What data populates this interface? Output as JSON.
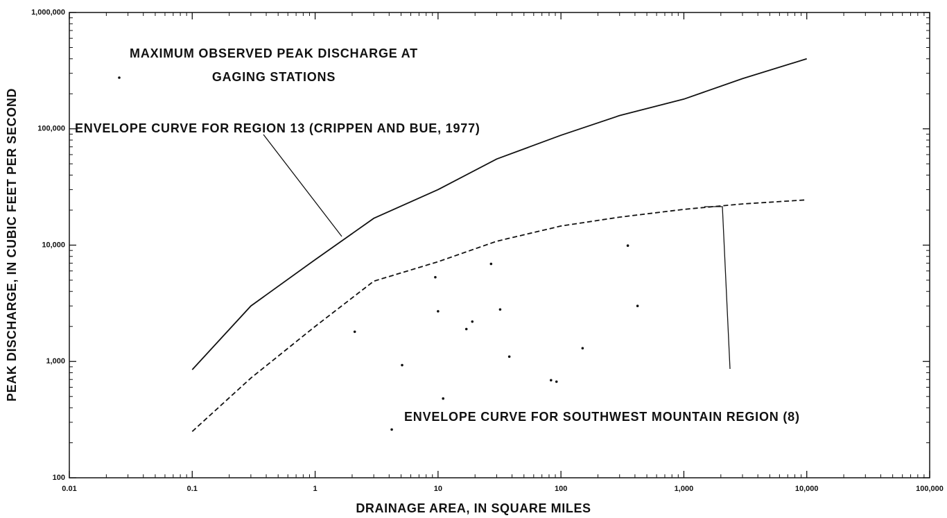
{
  "chart_data": {
    "type": "scatter",
    "xlabel": "DRAINAGE AREA, IN SQUARE MILES",
    "ylabel": "PEAK DISCHARGE, IN CUBIC FEET PER SECOND",
    "xscale": "log",
    "yscale": "log",
    "xlim": [
      0.01,
      100000
    ],
    "ylim": [
      100,
      1000000
    ],
    "xticks": [
      {
        "value": 0.01,
        "label": "0.01"
      },
      {
        "value": 0.1,
        "label": "0.1"
      },
      1,
      10,
      100,
      {
        "value": 1000,
        "label": "1,000"
      },
      {
        "value": 10000,
        "label": "10,000"
      },
      {
        "value": 100000,
        "label": "100,000"
      }
    ],
    "yticks": [
      100,
      {
        "value": 1000,
        "label": "1,000"
      },
      {
        "value": 10000,
        "label": "10,000"
      },
      {
        "value": 100000,
        "label": "100,000"
      },
      {
        "value": 1000000,
        "label": "1,000,000"
      }
    ],
    "grid": false,
    "series": [
      {
        "name": "MAXIMUM OBSERVED PEAK DISCHARGE AT GAGING STATIONS",
        "color": "#111111",
        "mode": "markers",
        "x": [
          2.1,
          5.1,
          4.2,
          9.5,
          10,
          11,
          19,
          17,
          27,
          32,
          38,
          83,
          92,
          150,
          350,
          420
        ],
        "values": [
          1800,
          930,
          260,
          5300,
          2700,
          480,
          2200,
          1900,
          6900,
          2800,
          1100,
          690,
          670,
          1300,
          9900,
          3000
        ]
      },
      {
        "name": "ENVELOPE CURVE FOR REGION 13 (CRIPPEN AND BUE, 1977)",
        "color": "#111111",
        "mode": "lines",
        "linestyle": "solid",
        "x": [
          0.1,
          0.3,
          1,
          3,
          10,
          30,
          100,
          300,
          1000,
          3000,
          10000
        ],
        "values": [
          850,
          3000,
          7500,
          17000,
          30000,
          55000,
          88000,
          130000,
          180000,
          270000,
          400000
        ]
      },
      {
        "name": "ENVELOPE CURVE FOR SOUTHWEST MOUNTAIN REGION (8)",
        "color": "#111111",
        "mode": "lines",
        "linestyle": "dashed",
        "x": [
          0.1,
          0.3,
          1,
          3,
          10,
          30,
          100,
          300,
          1000,
          3000,
          10000
        ],
        "values": [
          250,
          720,
          2000,
          4900,
          7200,
          10800,
          14600,
          17400,
          20300,
          22600,
          24500
        ]
      }
    ]
  }
}
